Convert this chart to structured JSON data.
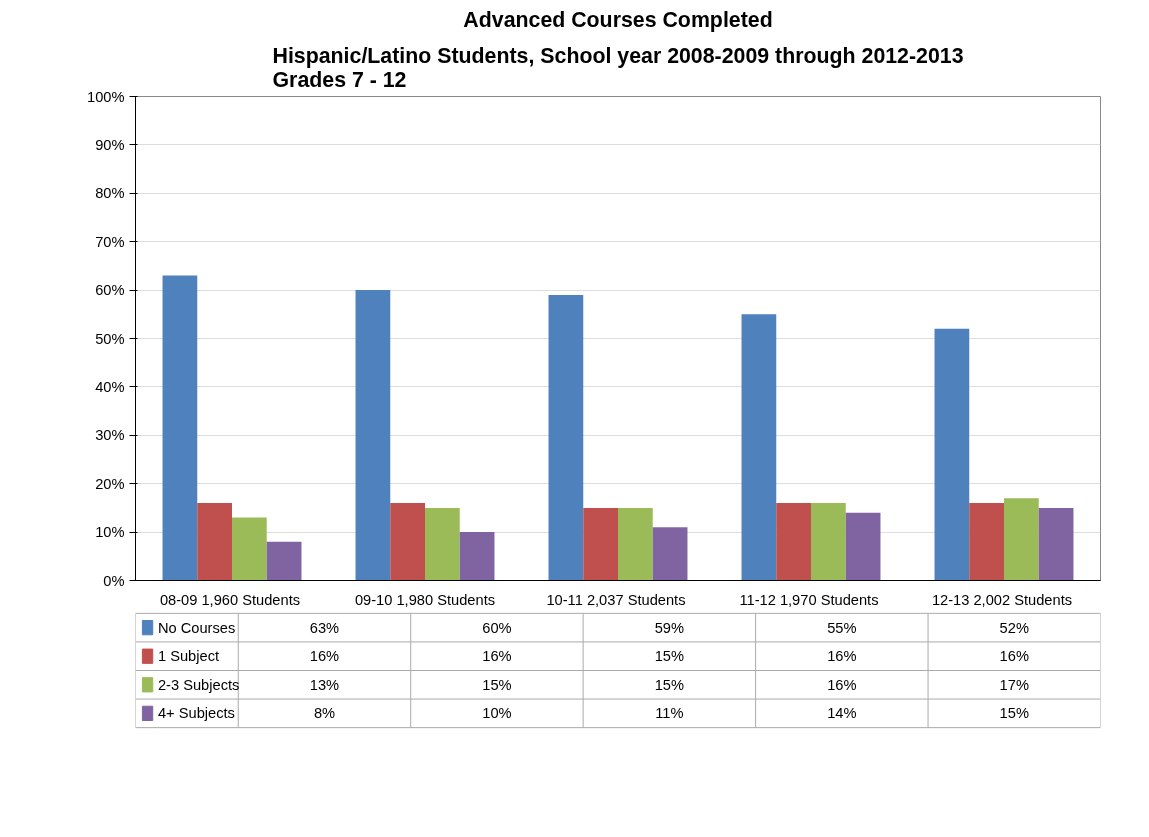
{
  "chart_data": {
    "type": "bar",
    "title": "Advanced Courses Completed",
    "subtitle": "Hispanic/Latino Students, School year 2008-2009 through 2012-2013\nGrades 7 - 12",
    "categories": [
      "08-09  1,960 Students",
      "09-10 1,980 Students",
      "10-11  2,037 Students",
      "11-12  1,970 Students",
      "12-13  2,002 Students"
    ],
    "series": [
      {
        "name": "No Courses",
        "color": "#4f81bd",
        "values": [
          63,
          60,
          59,
          55,
          52
        ],
        "value_labels": [
          "63%",
          "60%",
          "59%",
          "55%",
          "52%"
        ]
      },
      {
        "name": "1 Subject",
        "color": "#c0504d",
        "values": [
          16,
          16,
          15,
          16,
          16
        ],
        "value_labels": [
          "16%",
          "16%",
          "15%",
          "16%",
          "16%"
        ]
      },
      {
        "name": "2-3 Subjects",
        "color": "#9bbb59",
        "values": [
          13,
          15,
          15,
          16,
          17
        ],
        "value_labels": [
          "13%",
          "15%",
          "15%",
          "16%",
          "17%"
        ]
      },
      {
        "name": "4+ Subjects",
        "color": "#8064a2",
        "values": [
          8,
          10,
          11,
          14,
          15
        ],
        "value_labels": [
          "8%",
          "10%",
          "11%",
          "14%",
          "15%"
        ]
      }
    ],
    "ylim": [
      0,
      100
    ],
    "yticks": [
      {
        "value": 0,
        "label": "0%"
      },
      {
        "value": 10,
        "label": "10%"
      },
      {
        "value": 20,
        "label": "20%"
      },
      {
        "value": 30,
        "label": "30%"
      },
      {
        "value": 40,
        "label": "40%"
      },
      {
        "value": 50,
        "label": "50%"
      },
      {
        "value": 60,
        "label": "60%"
      },
      {
        "value": 70,
        "label": "70%"
      },
      {
        "value": 80,
        "label": "80%"
      },
      {
        "value": 90,
        "label": "90%"
      },
      {
        "value": 100,
        "label": "100%"
      }
    ],
    "grid": "y",
    "legend": "bottom"
  }
}
